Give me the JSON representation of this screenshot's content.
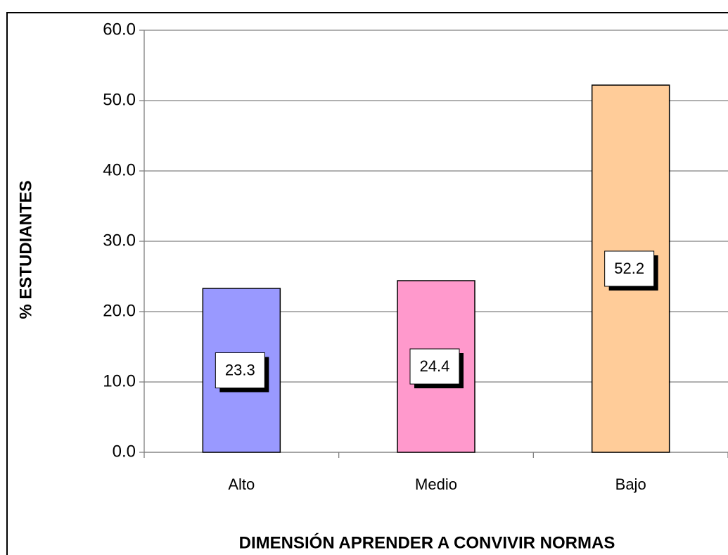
{
  "chart_data": {
    "type": "bar",
    "x_label": "DIMENSIÓN APRENDER A CONVIVIR NORMAS",
    "y_label": "% ESTUDIANTES",
    "categories": [
      "Alto",
      "Medio",
      "Bajo"
    ],
    "values": [
      23.3,
      24.4,
      52.2
    ],
    "colors": [
      "#9999ff",
      "#ff99cc",
      "#ffcc99"
    ],
    "ylim": [
      0,
      60
    ],
    "yticks": [
      {
        "value": 0,
        "label": "0.0"
      },
      {
        "value": 10,
        "label": "10.0"
      },
      {
        "value": 20,
        "label": "20.0"
      },
      {
        "value": 30,
        "label": "30.0"
      },
      {
        "value": 40,
        "label": "40.0"
      },
      {
        "value": 50,
        "label": "50.0"
      },
      {
        "value": 60,
        "label": "60.0"
      }
    ],
    "grid": true
  }
}
